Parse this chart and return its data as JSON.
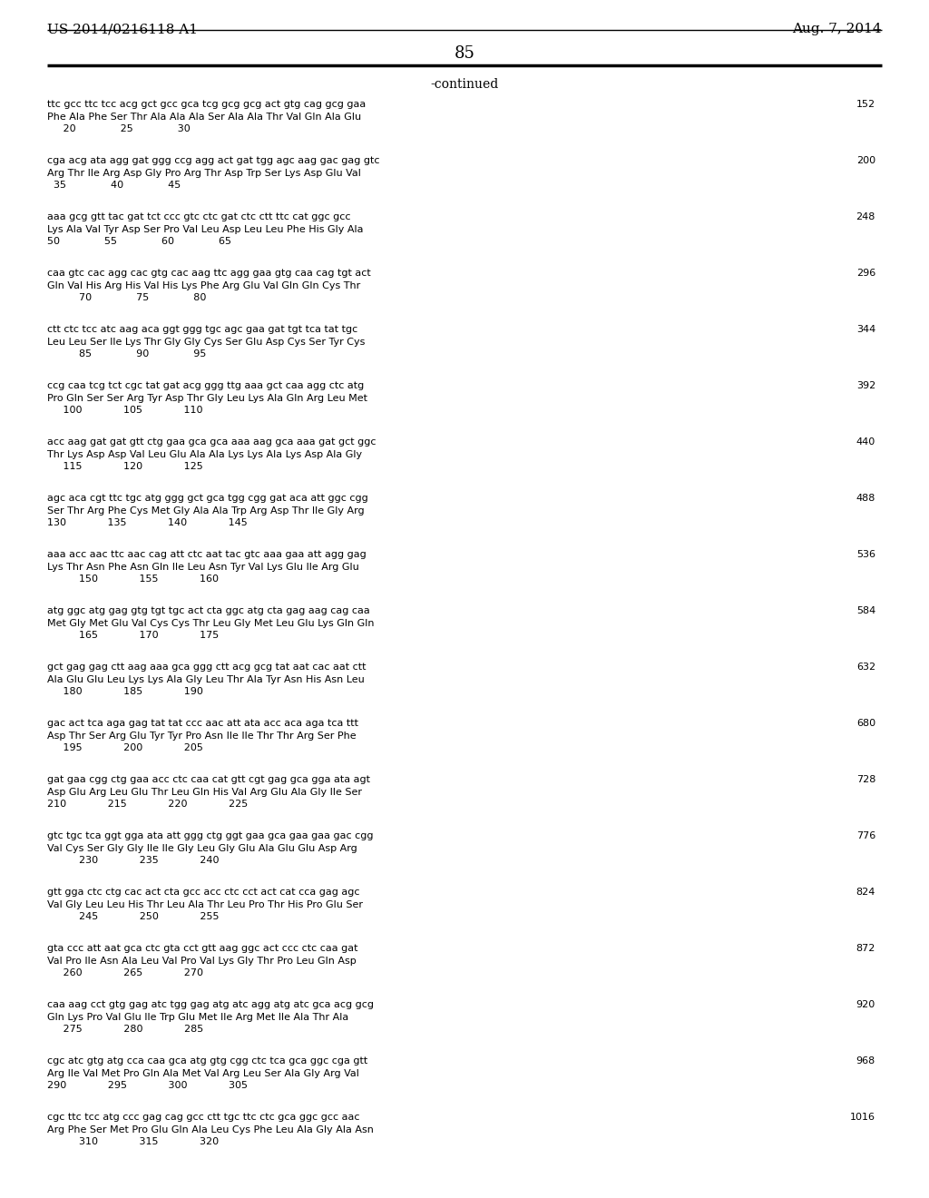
{
  "header_left": "US 2014/0216118 A1",
  "header_right": "Aug. 7, 2014",
  "page_number": "85",
  "continued_text": "-continued",
  "background_color": "#ffffff",
  "text_color": "#000000",
  "sequences": [
    {
      "dna": "ttc gcc ttc tcc acg gct gcc gca tcg gcg gcg act gtg cag gcg gaa",
      "aa": "Phe Ala Phe Ser Thr Ala Ala Ala Ser Ala Ala Thr Val Gln Ala Glu",
      "nums": "     20              25              30",
      "num_right": "152"
    },
    {
      "dna": "cga acg ata agg gat ggg ccg agg act gat tgg agc aag gac gag gtc",
      "aa": "Arg Thr Ile Arg Asp Gly Pro Arg Thr Asp Trp Ser Lys Asp Glu Val",
      "nums": "  35              40              45",
      "num_right": "200"
    },
    {
      "dna": "aaa gcg gtt tac gat tct ccc gtc ctc gat ctc ctt ttc cat ggc gcc",
      "aa": "Lys Ala Val Tyr Asp Ser Pro Val Leu Asp Leu Leu Phe His Gly Ala",
      "nums": "50              55              60              65",
      "num_right": "248"
    },
    {
      "dna": "caa gtc cac agg cac gtg cac aag ttc agg gaa gtg caa cag tgt act",
      "aa": "Gln Val His Arg His Val His Lys Phe Arg Glu Val Gln Gln Cys Thr",
      "nums": "          70              75              80",
      "num_right": "296"
    },
    {
      "dna": "ctt ctc tcc atc aag aca ggt ggg tgc agc gaa gat tgt tca tat tgc",
      "aa": "Leu Leu Ser Ile Lys Thr Gly Gly Cys Ser Glu Asp Cys Ser Tyr Cys",
      "nums": "          85              90              95",
      "num_right": "344"
    },
    {
      "dna": "ccg caa tcg tct cgc tat gat acg ggg ttg aaa gct caa agg ctc atg",
      "aa": "Pro Gln Ser Ser Arg Tyr Asp Thr Gly Leu Lys Ala Gln Arg Leu Met",
      "nums": "     100             105             110",
      "num_right": "392"
    },
    {
      "dna": "acc aag gat gat gtt ctg gaa gca gca aaa aag gca aaa gat gct ggc",
      "aa": "Thr Lys Asp Asp Val Leu Glu Ala Ala Lys Lys Ala Lys Asp Ala Gly",
      "nums": "     115             120             125",
      "num_right": "440"
    },
    {
      "dna": "agc aca cgt ttc tgc atg ggg gct gca tgg cgg gat aca att ggc cgg",
      "aa": "Ser Thr Arg Phe Cys Met Gly Ala Ala Trp Arg Asp Thr Ile Gly Arg",
      "nums": "130             135             140             145",
      "num_right": "488"
    },
    {
      "dna": "aaa acc aac ttc aac cag att ctc aat tac gtc aaa gaa att agg gag",
      "aa": "Lys Thr Asn Phe Asn Gln Ile Leu Asn Tyr Val Lys Glu Ile Arg Glu",
      "nums": "          150             155             160",
      "num_right": "536"
    },
    {
      "dna": "atg ggc atg gag gtg tgt tgc act cta ggc atg cta gag aag cag caa",
      "aa": "Met Gly Met Glu Val Cys Cys Thr Leu Gly Met Leu Glu Lys Gln Gln",
      "nums": "          165             170             175",
      "num_right": "584"
    },
    {
      "dna": "gct gag gag ctt aag aaa gca ggg ctt acg gcg tat aat cac aat ctt",
      "aa": "Ala Glu Glu Leu Lys Lys Ala Gly Leu Thr Ala Tyr Asn His Asn Leu",
      "nums": "     180             185             190",
      "num_right": "632"
    },
    {
      "dna": "gac act tca aga gag tat tat ccc aac att ata acc aca aga tca ttt",
      "aa": "Asp Thr Ser Arg Glu Tyr Tyr Pro Asn Ile Ile Thr Thr Arg Ser Phe",
      "nums": "     195             200             205",
      "num_right": "680"
    },
    {
      "dna": "gat gaa cgg ctg gaa acc ctc caa cat gtt cgt gag gca gga ata agt",
      "aa": "Asp Glu Arg Leu Glu Thr Leu Gln His Val Arg Glu Ala Gly Ile Ser",
      "nums": "210             215             220             225",
      "num_right": "728"
    },
    {
      "dna": "gtc tgc tca ggt gga ata att ggg ctg ggt gaa gca gaa gaa gac cgg",
      "aa": "Val Cys Ser Gly Gly Ile Ile Gly Leu Gly Glu Ala Glu Glu Asp Arg",
      "nums": "          230             235             240",
      "num_right": "776"
    },
    {
      "dna": "gtt gga ctc ctg cac act cta gcc acc ctc cct act cat cca gag agc",
      "aa": "Val Gly Leu Leu His Thr Leu Ala Thr Leu Pro Thr His Pro Glu Ser",
      "nums": "          245             250             255",
      "num_right": "824"
    },
    {
      "dna": "gta ccc att aat gca ctc gta cct gtt aag ggc act ccc ctc caa gat",
      "aa": "Val Pro Ile Asn Ala Leu Val Pro Val Lys Gly Thr Pro Leu Gln Asp",
      "nums": "     260             265             270",
      "num_right": "872"
    },
    {
      "dna": "caa aag cct gtg gag atc tgg gag atg atc agg atg atc gca acg gcg",
      "aa": "Gln Lys Pro Val Glu Ile Trp Glu Met Ile Arg Met Ile Ala Thr Ala",
      "nums": "     275             280             285",
      "num_right": "920"
    },
    {
      "dna": "cgc atc gtg atg cca caa gca atg gtg cgg ctc tca gca ggc cga gtt",
      "aa": "Arg Ile Val Met Pro Gln Ala Met Val Arg Leu Ser Ala Gly Arg Val",
      "nums": "290             295             300             305",
      "num_right": "968"
    },
    {
      "dna": "cgc ttc tcc atg ccc gag cag gcc ctt tgc ttc ctc gca ggc gcc aac",
      "aa": "Arg Phe Ser Met Pro Glu Gln Ala Leu Cys Phe Leu Ala Gly Ala Asn",
      "nums": "          310             315             320",
      "num_right": "1016"
    }
  ]
}
